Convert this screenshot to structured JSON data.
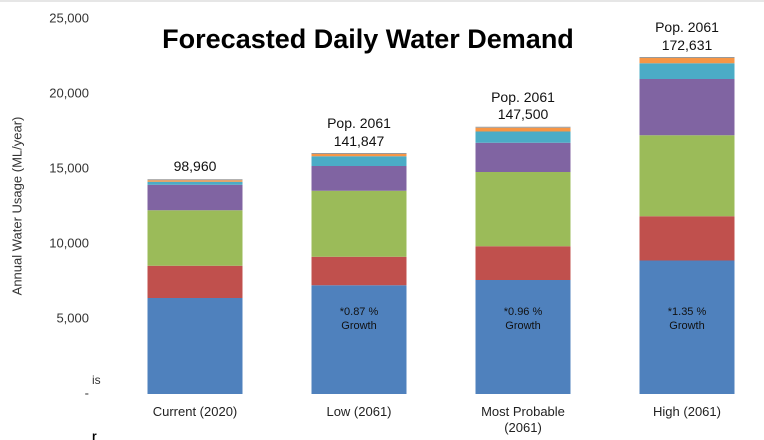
{
  "chart_data": {
    "type": "stacked_bar",
    "title": "Forecasted Daily Water Demand",
    "y_label": "Annual Water Usage (ML/year)",
    "categories": [
      "Current (2020)",
      "Low (2061)",
      "Most Probable (2061)",
      "High (2061)"
    ],
    "series": [
      {
        "color": "#4f81bd",
        "values": [
          6400,
          7250,
          7600,
          8900
        ]
      },
      {
        "color": "#c0504d",
        "values": [
          2150,
          1900,
          2250,
          2950
        ]
      },
      {
        "color": "#9bbb59",
        "values": [
          3700,
          4400,
          4950,
          5400
        ]
      },
      {
        "color": "#8064a2",
        "values": [
          1700,
          1650,
          1950,
          3750
        ]
      },
      {
        "color": "#4bacc6",
        "values": [
          200,
          650,
          750,
          1050
        ]
      },
      {
        "color": "#f79646",
        "values": [
          100,
          150,
          250,
          350
        ]
      }
    ],
    "ylim": [
      0,
      25000
    ],
    "yticks": [
      {
        "value": 0,
        "label": "-"
      },
      {
        "value": 5000,
        "label": "5,000"
      },
      {
        "value": 10000,
        "label": "10,000"
      },
      {
        "value": 15000,
        "label": "15,000"
      },
      {
        "value": 20000,
        "label": "20,000"
      },
      {
        "value": 25000,
        "label": "25,000"
      }
    ],
    "pop_labels": [
      "98,960",
      "Pop. 2061 141,847",
      "Pop. 2061 147,500",
      "Pop. 2061 172,631"
    ],
    "growth_labels": [
      null,
      "*0.87 % Growth",
      "*0.96 % Growth",
      "*1.35 % Growth"
    ],
    "margin_text": [
      "is",
      "r"
    ]
  }
}
